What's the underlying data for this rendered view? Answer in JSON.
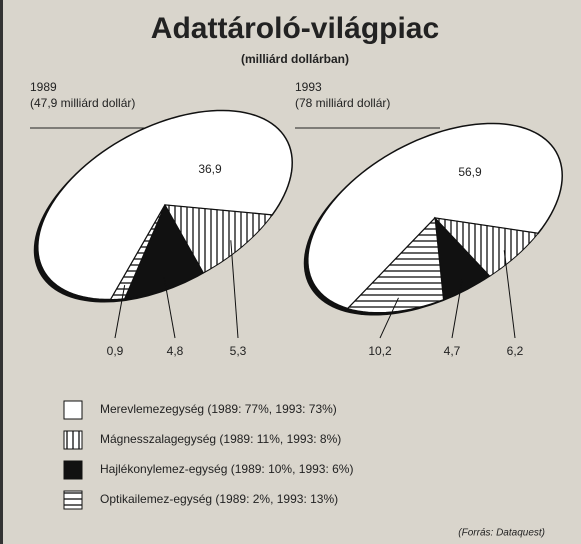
{
  "title": "Adattároló-világpiac",
  "subtitle": "(milliárd dollárban)",
  "legend": [
    {
      "name": "Merevlemezegység (1989: 77%, 1993: 73%)",
      "fill": "white"
    },
    {
      "name": "Mágnesszalagegység (1989: 11%, 1993: 8%)",
      "fill": "vertical"
    },
    {
      "name": "Hajlékonylemez-egység (1989: 10%, 1993: 6%)",
      "fill": "black"
    },
    {
      "name": "Optikailemez-egység (1989: 2%, 1993: 13%)",
      "fill": "horizontal"
    }
  ],
  "source": "(Forrás: Dataquest)",
  "chart_data": [
    {
      "type": "pie",
      "title": "1989",
      "subtitle": "(47,9 milliárd dollár)",
      "values": [
        36.9,
        5.3,
        4.8,
        0.9
      ],
      "value_labels": [
        "36,9",
        "5,3",
        "4,8",
        "0,9"
      ]
    },
    {
      "type": "pie",
      "title": "1993",
      "subtitle": "(78 milliárd dollár)",
      "values": [
        56.9,
        6.2,
        4.7,
        10.2
      ],
      "value_labels": [
        "56,9",
        "6,2",
        "4,7",
        "10,2"
      ]
    }
  ]
}
